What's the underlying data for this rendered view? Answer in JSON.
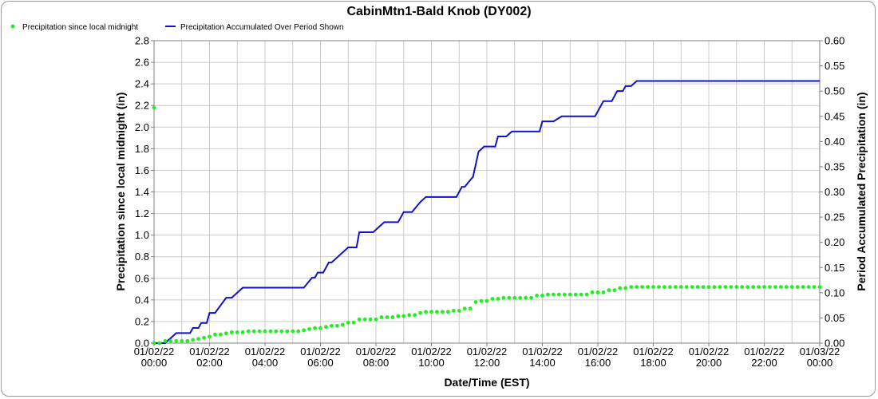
{
  "chart_data": {
    "type": "line",
    "title": "CabinMtn1-Bald Knob (DY002)",
    "xlabel": "Date/Time (EST)",
    "ylabel_left": "Precipitation since local midnight (in)",
    "ylabel_right": "Period Accumulated Precipitation (in)",
    "ylim_left": [
      0,
      2.8
    ],
    "ylim_right": [
      0,
      0.6
    ],
    "xlim_hours": [
      0,
      24
    ],
    "grid": true,
    "legend_position": "top-left",
    "x_ticks": [
      {
        "hour": 0,
        "date": "01/02/22",
        "time": "00:00"
      },
      {
        "hour": 2,
        "date": "01/02/22",
        "time": "02:00"
      },
      {
        "hour": 4,
        "date": "01/02/22",
        "time": "04:00"
      },
      {
        "hour": 6,
        "date": "01/02/22",
        "time": "06:00"
      },
      {
        "hour": 8,
        "date": "01/02/22",
        "time": "08:00"
      },
      {
        "hour": 10,
        "date": "01/02/22",
        "time": "10:00"
      },
      {
        "hour": 12,
        "date": "01/02/22",
        "time": "12:00"
      },
      {
        "hour": 14,
        "date": "01/02/22",
        "time": "14:00"
      },
      {
        "hour": 16,
        "date": "01/02/22",
        "time": "16:00"
      },
      {
        "hour": 18,
        "date": "01/02/22",
        "time": "18:00"
      },
      {
        "hour": 20,
        "date": "01/02/22",
        "time": "20:00"
      },
      {
        "hour": 22,
        "date": "01/02/22",
        "time": "22:00"
      },
      {
        "hour": 24,
        "date": "01/03/22",
        "time": "00:00"
      }
    ],
    "y_ticks_left": [
      "0.0",
      "0.2",
      "0.4",
      "0.6",
      "0.8",
      "1.0",
      "1.2",
      "1.4",
      "1.6",
      "1.8",
      "2.0",
      "2.2",
      "2.4",
      "2.6",
      "2.8"
    ],
    "y_ticks_right": [
      "0.00",
      "0.05",
      "0.10",
      "0.15",
      "0.20",
      "0.25",
      "0.30",
      "0.35",
      "0.40",
      "0.45",
      "0.50",
      "0.55",
      "0.60"
    ],
    "series": [
      {
        "name": "Precipitation since local midnight",
        "axis": "left",
        "style": "points",
        "color": "#22ee22",
        "x_step_hours": 0.2,
        "steps": [
          [
            0.0,
            0.0
          ],
          [
            0.4,
            0.02
          ],
          [
            0.8,
            0.02
          ],
          [
            1.4,
            0.03
          ],
          [
            1.6,
            0.04
          ],
          [
            1.8,
            0.05
          ],
          [
            2.0,
            0.06
          ],
          [
            2.2,
            0.08
          ],
          [
            2.6,
            0.09
          ],
          [
            2.8,
            0.1
          ],
          [
            3.4,
            0.11
          ],
          [
            5.4,
            0.12
          ],
          [
            5.6,
            0.13
          ],
          [
            5.8,
            0.14
          ],
          [
            6.2,
            0.15
          ],
          [
            6.4,
            0.16
          ],
          [
            6.8,
            0.17
          ],
          [
            7.0,
            0.19
          ],
          [
            7.4,
            0.22
          ],
          [
            8.2,
            0.24
          ],
          [
            8.8,
            0.25
          ],
          [
            9.2,
            0.26
          ],
          [
            9.6,
            0.28
          ],
          [
            9.8,
            0.29
          ],
          [
            10.8,
            0.3
          ],
          [
            11.2,
            0.32
          ],
          [
            11.6,
            0.38
          ],
          [
            11.8,
            0.39
          ],
          [
            12.2,
            0.41
          ],
          [
            12.6,
            0.42
          ],
          [
            13.8,
            0.44
          ],
          [
            14.2,
            0.45
          ],
          [
            15.8,
            0.47
          ],
          [
            16.4,
            0.49
          ],
          [
            16.8,
            0.51
          ],
          [
            17.2,
            0.52
          ]
        ],
        "outlier": {
          "hour": 0.0,
          "value": 2.18
        }
      },
      {
        "name": "Precipitation Accumulated Over Period Shown",
        "axis": "right",
        "style": "line",
        "color": "#1111cc",
        "points": [
          [
            0.0,
            0.0
          ],
          [
            0.4,
            0.0
          ],
          [
            0.8,
            0.02
          ],
          [
            1.3,
            0.02
          ],
          [
            1.4,
            0.03
          ],
          [
            1.6,
            0.03
          ],
          [
            1.7,
            0.04
          ],
          [
            1.9,
            0.04
          ],
          [
            2.0,
            0.06
          ],
          [
            2.2,
            0.06
          ],
          [
            2.6,
            0.09
          ],
          [
            2.8,
            0.09
          ],
          [
            3.2,
            0.11
          ],
          [
            5.4,
            0.11
          ],
          [
            5.7,
            0.13
          ],
          [
            5.8,
            0.13
          ],
          [
            5.9,
            0.14
          ],
          [
            6.1,
            0.14
          ],
          [
            6.3,
            0.16
          ],
          [
            6.4,
            0.16
          ],
          [
            7.0,
            0.19
          ],
          [
            7.3,
            0.19
          ],
          [
            7.4,
            0.22
          ],
          [
            7.9,
            0.22
          ],
          [
            8.3,
            0.24
          ],
          [
            8.8,
            0.24
          ],
          [
            9.0,
            0.26
          ],
          [
            9.3,
            0.26
          ],
          [
            9.6,
            0.28
          ],
          [
            9.8,
            0.29
          ],
          [
            10.9,
            0.29
          ],
          [
            11.1,
            0.31
          ],
          [
            11.2,
            0.31
          ],
          [
            11.5,
            0.33
          ],
          [
            11.7,
            0.38
          ],
          [
            11.9,
            0.39
          ],
          [
            12.3,
            0.39
          ],
          [
            12.4,
            0.41
          ],
          [
            12.7,
            0.41
          ],
          [
            12.9,
            0.42
          ],
          [
            13.9,
            0.42
          ],
          [
            14.0,
            0.44
          ],
          [
            14.4,
            0.44
          ],
          [
            14.7,
            0.45
          ],
          [
            15.9,
            0.45
          ],
          [
            16.2,
            0.48
          ],
          [
            16.5,
            0.48
          ],
          [
            16.7,
            0.5
          ],
          [
            16.9,
            0.5
          ],
          [
            17.0,
            0.51
          ],
          [
            17.2,
            0.51
          ],
          [
            17.4,
            0.52
          ],
          [
            24.0,
            0.52
          ]
        ]
      }
    ]
  }
}
